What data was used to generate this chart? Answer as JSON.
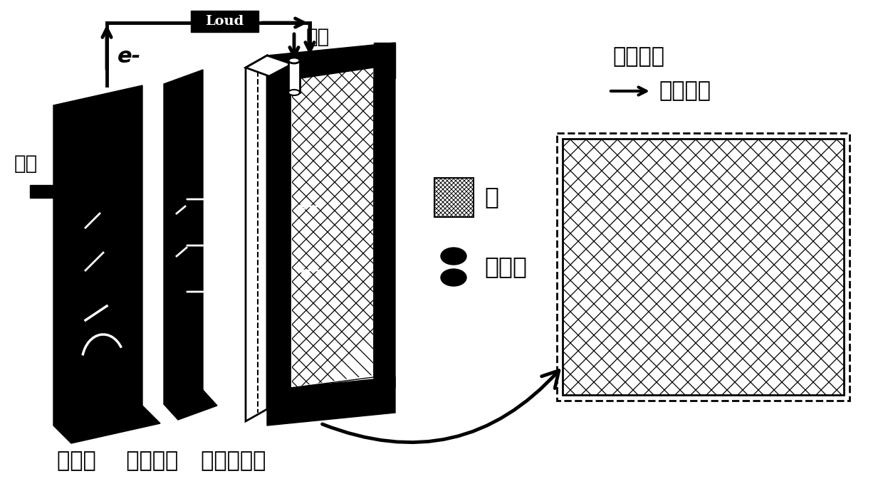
{
  "bg": "#ffffff",
  "black": "#000000",
  "label_loud": "Loud",
  "label_e": "e-",
  "label_water_in": "进水",
  "label_water_out": "出水",
  "label_water_dir": "水流方向",
  "label_current_dir": "电流方向",
  "legend_mem": "膜",
  "legend_cat": "催化剂",
  "bottom_label": "阳极室    石英砂室   阴极催化膜"
}
